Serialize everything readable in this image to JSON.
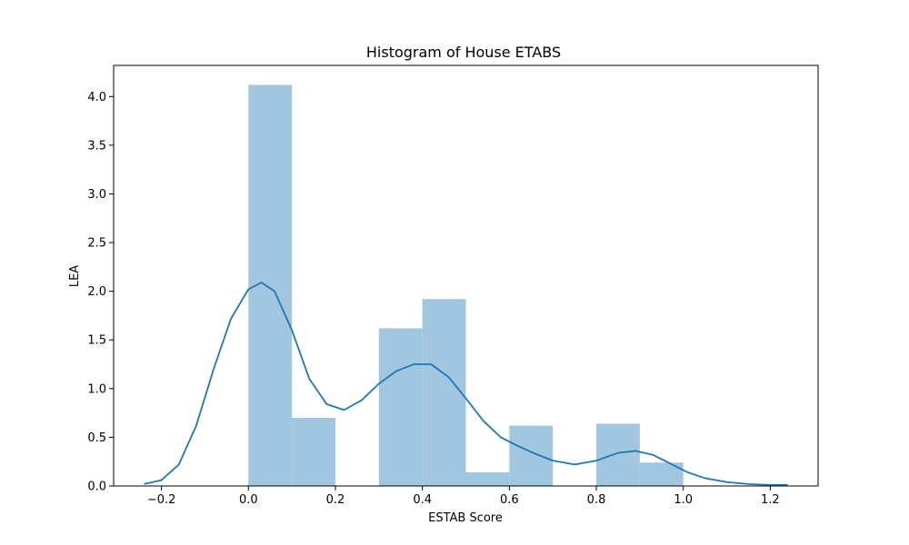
{
  "chart_data": {
    "type": "bar",
    "title": "Histogram of House ETABS",
    "xlabel": "ESTAB Score",
    "ylabel": "LEA",
    "xlim": [
      -0.31,
      1.31
    ],
    "ylim": [
      0,
      4.32
    ],
    "grid": false,
    "legend": "none",
    "bars": [
      {
        "x0": 0.0,
        "x1": 0.1,
        "value": 4.12
      },
      {
        "x0": 0.1,
        "x1": 0.2,
        "value": 0.7
      },
      {
        "x0": 0.3,
        "x1": 0.4,
        "value": 1.62
      },
      {
        "x0": 0.4,
        "x1": 0.5,
        "value": 1.92
      },
      {
        "x0": 0.5,
        "x1": 0.6,
        "value": 0.14
      },
      {
        "x0": 0.6,
        "x1": 0.7,
        "value": 0.62
      },
      {
        "x0": 0.8,
        "x1": 0.9,
        "value": 0.64
      },
      {
        "x0": 0.9,
        "x1": 1.0,
        "value": 0.24
      }
    ],
    "kde": {
      "x": [
        -0.24,
        -0.2,
        -0.16,
        -0.12,
        -0.08,
        -0.04,
        0.0,
        0.03,
        0.06,
        0.1,
        0.14,
        0.18,
        0.22,
        0.26,
        0.3,
        0.34,
        0.38,
        0.42,
        0.46,
        0.5,
        0.54,
        0.58,
        0.62,
        0.66,
        0.7,
        0.75,
        0.8,
        0.85,
        0.89,
        0.93,
        0.97,
        1.01,
        1.05,
        1.1,
        1.15,
        1.2,
        1.24
      ],
      "y": [
        0.02,
        0.06,
        0.22,
        0.62,
        1.2,
        1.72,
        2.02,
        2.09,
        2.0,
        1.6,
        1.1,
        0.84,
        0.78,
        0.88,
        1.05,
        1.18,
        1.25,
        1.25,
        1.12,
        0.9,
        0.67,
        0.5,
        0.41,
        0.33,
        0.26,
        0.22,
        0.26,
        0.34,
        0.36,
        0.32,
        0.23,
        0.14,
        0.08,
        0.04,
        0.02,
        0.01,
        0.01
      ]
    },
    "xticks": [
      -0.2,
      0.0,
      0.2,
      0.4,
      0.6,
      0.8,
      1.0,
      1.2
    ],
    "xtick_labels": [
      "−0.2",
      "0.0",
      "0.2",
      "0.4",
      "0.6",
      "0.8",
      "1.0",
      "1.2"
    ],
    "yticks": [
      0.0,
      0.5,
      1.0,
      1.5,
      2.0,
      2.5,
      3.0,
      3.5,
      4.0
    ],
    "ytick_labels": [
      "0.0",
      "0.5",
      "1.0",
      "1.5",
      "2.0",
      "2.5",
      "3.0",
      "3.5",
      "4.0"
    ],
    "colors": {
      "bar": "#a1c6e0",
      "line": "#1f77b4",
      "axis": "#000000"
    }
  }
}
